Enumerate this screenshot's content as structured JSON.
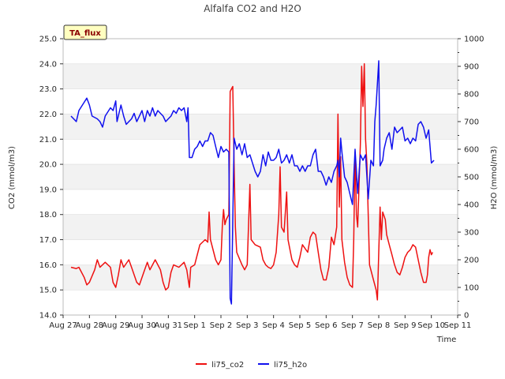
{
  "chart_data": {
    "type": "line",
    "title": "Alfalfa CO2 and H2O",
    "badge": "TA_flux",
    "xlabel": "Time",
    "ylabel_left": "CO2 (mmol/m3)",
    "ylabel_right": "H2O (mmol/m3)",
    "ylim_left": [
      14.0,
      25.0
    ],
    "ylim_right": [
      0,
      1000
    ],
    "xlim": [
      0,
      15
    ],
    "grid": "horizontal bands",
    "legend_position": "bottom-center",
    "x_ticks": [
      "Aug 27",
      "Aug 28",
      "Aug 29",
      "Aug 30",
      "Aug 31",
      "Sep 1",
      "Sep 2",
      "Sep 3",
      "Sep 4",
      "Sep 5",
      "Sep 6",
      "Sep 7",
      "Sep 8",
      "Sep 9",
      "Sep 10",
      "Sep 11"
    ],
    "y_ticks_left": [
      "14.0",
      "15.0",
      "16.0",
      "17.0",
      "18.0",
      "19.0",
      "20.0",
      "21.0",
      "22.0",
      "23.0",
      "24.0",
      "25.0"
    ],
    "y_ticks_right": [
      "0",
      "100",
      "200",
      "300",
      "400",
      "500",
      "600",
      "700",
      "800",
      "900",
      "1000"
    ],
    "series": [
      {
        "name": "li75_co2",
        "axis": "left",
        "color": "#ee1111",
        "points": [
          [
            0.3,
            15.9
          ],
          [
            0.5,
            15.85
          ],
          [
            0.6,
            15.9
          ],
          [
            0.8,
            15.5
          ],
          [
            0.9,
            15.2
          ],
          [
            1.0,
            15.3
          ],
          [
            1.2,
            15.8
          ],
          [
            1.3,
            16.2
          ],
          [
            1.4,
            15.9
          ],
          [
            1.6,
            16.1
          ],
          [
            1.8,
            15.9
          ],
          [
            1.9,
            15.3
          ],
          [
            2.0,
            15.1
          ],
          [
            2.1,
            15.6
          ],
          [
            2.2,
            16.2
          ],
          [
            2.3,
            15.9
          ],
          [
            2.5,
            16.2
          ],
          [
            2.6,
            15.9
          ],
          [
            2.8,
            15.3
          ],
          [
            2.9,
            15.2
          ],
          [
            3.1,
            15.8
          ],
          [
            3.2,
            16.1
          ],
          [
            3.3,
            15.8
          ],
          [
            3.5,
            16.2
          ],
          [
            3.7,
            15.8
          ],
          [
            3.8,
            15.3
          ],
          [
            3.9,
            15.0
          ],
          [
            4.0,
            15.1
          ],
          [
            4.1,
            15.7
          ],
          [
            4.2,
            16.0
          ],
          [
            4.4,
            15.9
          ],
          [
            4.6,
            16.1
          ],
          [
            4.7,
            15.8
          ],
          [
            4.8,
            15.1
          ],
          [
            4.85,
            15.9
          ],
          [
            5.0,
            16.0
          ],
          [
            5.2,
            16.8
          ],
          [
            5.4,
            17.0
          ],
          [
            5.5,
            16.9
          ],
          [
            5.55,
            18.1
          ],
          [
            5.6,
            17.0
          ],
          [
            5.8,
            16.2
          ],
          [
            5.9,
            16.0
          ],
          [
            6.0,
            16.2
          ],
          [
            6.05,
            17.5
          ],
          [
            6.1,
            18.2
          ],
          [
            6.15,
            17.6
          ],
          [
            6.2,
            17.8
          ],
          [
            6.3,
            18.0
          ],
          [
            6.35,
            22.9
          ],
          [
            6.45,
            23.1
          ],
          [
            6.5,
            20.0
          ],
          [
            6.55,
            17.5
          ],
          [
            6.6,
            16.5
          ],
          [
            6.8,
            16.0
          ],
          [
            6.9,
            15.8
          ],
          [
            7.0,
            16.0
          ],
          [
            7.1,
            19.2
          ],
          [
            7.15,
            17.0
          ],
          [
            7.3,
            16.8
          ],
          [
            7.5,
            16.7
          ],
          [
            7.6,
            16.2
          ],
          [
            7.7,
            16.0
          ],
          [
            7.8,
            15.9
          ],
          [
            7.9,
            15.85
          ],
          [
            8.0,
            16.0
          ],
          [
            8.1,
            16.5
          ],
          [
            8.2,
            18.0
          ],
          [
            8.25,
            19.9
          ],
          [
            8.3,
            17.5
          ],
          [
            8.4,
            17.3
          ],
          [
            8.5,
            18.9
          ],
          [
            8.55,
            17.0
          ],
          [
            8.7,
            16.2
          ],
          [
            8.8,
            16.0
          ],
          [
            8.9,
            15.9
          ],
          [
            9.0,
            16.3
          ],
          [
            9.1,
            16.8
          ],
          [
            9.3,
            16.5
          ],
          [
            9.4,
            17.1
          ],
          [
            9.5,
            17.3
          ],
          [
            9.6,
            17.2
          ],
          [
            9.7,
            16.5
          ],
          [
            9.8,
            15.8
          ],
          [
            9.9,
            15.4
          ],
          [
            10.0,
            15.4
          ],
          [
            10.1,
            15.9
          ],
          [
            10.2,
            17.1
          ],
          [
            10.3,
            16.8
          ],
          [
            10.4,
            17.5
          ],
          [
            10.45,
            22.0
          ],
          [
            10.5,
            18.3
          ],
          [
            10.55,
            20.3
          ],
          [
            10.6,
            17.0
          ],
          [
            10.7,
            16.1
          ],
          [
            10.8,
            15.5
          ],
          [
            10.9,
            15.2
          ],
          [
            11.0,
            15.1
          ],
          [
            11.05,
            17.0
          ],
          [
            11.1,
            20.5
          ],
          [
            11.15,
            18.0
          ],
          [
            11.2,
            17.5
          ],
          [
            11.3,
            20.8
          ],
          [
            11.35,
            23.9
          ],
          [
            11.4,
            22.3
          ],
          [
            11.45,
            24.0
          ],
          [
            11.5,
            21.0
          ],
          [
            11.55,
            20.0
          ],
          [
            11.65,
            16.0
          ],
          [
            11.8,
            15.4
          ],
          [
            11.9,
            15.0
          ],
          [
            11.95,
            14.6
          ],
          [
            12.0,
            16.5
          ],
          [
            12.05,
            18.3
          ],
          [
            12.1,
            17.0
          ],
          [
            12.15,
            18.1
          ],
          [
            12.25,
            17.8
          ],
          [
            12.3,
            17.2
          ],
          [
            12.4,
            16.8
          ],
          [
            12.5,
            16.4
          ],
          [
            12.6,
            16.0
          ],
          [
            12.7,
            15.7
          ],
          [
            12.8,
            15.6
          ],
          [
            12.9,
            15.9
          ],
          [
            13.0,
            16.3
          ],
          [
            13.1,
            16.5
          ],
          [
            13.2,
            16.6
          ],
          [
            13.3,
            16.8
          ],
          [
            13.4,
            16.7
          ],
          [
            13.5,
            16.2
          ],
          [
            13.6,
            15.7
          ],
          [
            13.7,
            15.3
          ],
          [
            13.8,
            15.3
          ],
          [
            13.85,
            15.6
          ],
          [
            13.9,
            16.3
          ],
          [
            13.95,
            16.6
          ],
          [
            14.0,
            16.4
          ],
          [
            14.05,
            16.5
          ]
        ]
      },
      {
        "name": "li75_h2o",
        "axis": "right",
        "color": "#1111ee",
        "points": [
          [
            0.3,
            720
          ],
          [
            0.5,
            700
          ],
          [
            0.6,
            740
          ],
          [
            0.8,
            770
          ],
          [
            0.9,
            785
          ],
          [
            1.0,
            760
          ],
          [
            1.1,
            720
          ],
          [
            1.3,
            710
          ],
          [
            1.4,
            700
          ],
          [
            1.5,
            680
          ],
          [
            1.6,
            720
          ],
          [
            1.8,
            750
          ],
          [
            1.9,
            740
          ],
          [
            2.0,
            775
          ],
          [
            2.05,
            700
          ],
          [
            2.2,
            760
          ],
          [
            2.3,
            720
          ],
          [
            2.4,
            690
          ],
          [
            2.5,
            700
          ],
          [
            2.6,
            710
          ],
          [
            2.7,
            730
          ],
          [
            2.8,
            700
          ],
          [
            2.9,
            720
          ],
          [
            3.0,
            740
          ],
          [
            3.1,
            700
          ],
          [
            3.2,
            740
          ],
          [
            3.3,
            720
          ],
          [
            3.4,
            750
          ],
          [
            3.5,
            720
          ],
          [
            3.6,
            740
          ],
          [
            3.7,
            730
          ],
          [
            3.8,
            720
          ],
          [
            3.9,
            700
          ],
          [
            4.0,
            710
          ],
          [
            4.1,
            720
          ],
          [
            4.2,
            740
          ],
          [
            4.3,
            730
          ],
          [
            4.4,
            750
          ],
          [
            4.5,
            740
          ],
          [
            4.6,
            750
          ],
          [
            4.7,
            700
          ],
          [
            4.75,
            750
          ],
          [
            4.8,
            570
          ],
          [
            4.9,
            570
          ],
          [
            5.0,
            600
          ],
          [
            5.1,
            610
          ],
          [
            5.2,
            630
          ],
          [
            5.3,
            610
          ],
          [
            5.4,
            630
          ],
          [
            5.5,
            630
          ],
          [
            5.6,
            660
          ],
          [
            5.7,
            650
          ],
          [
            5.8,
            610
          ],
          [
            5.9,
            570
          ],
          [
            6.0,
            610
          ],
          [
            6.1,
            590
          ],
          [
            6.2,
            600
          ],
          [
            6.3,
            590
          ],
          [
            6.35,
            60
          ],
          [
            6.4,
            40
          ],
          [
            6.5,
            640
          ],
          [
            6.6,
            600
          ],
          [
            6.7,
            620
          ],
          [
            6.8,
            580
          ],
          [
            6.9,
            620
          ],
          [
            7.0,
            570
          ],
          [
            7.1,
            580
          ],
          [
            7.2,
            550
          ],
          [
            7.3,
            520
          ],
          [
            7.4,
            500
          ],
          [
            7.5,
            520
          ],
          [
            7.6,
            580
          ],
          [
            7.7,
            540
          ],
          [
            7.8,
            590
          ],
          [
            7.9,
            560
          ],
          [
            8.0,
            560
          ],
          [
            8.1,
            570
          ],
          [
            8.2,
            600
          ],
          [
            8.3,
            550
          ],
          [
            8.4,
            560
          ],
          [
            8.5,
            580
          ],
          [
            8.6,
            550
          ],
          [
            8.7,
            580
          ],
          [
            8.8,
            540
          ],
          [
            8.9,
            540
          ],
          [
            9.0,
            520
          ],
          [
            9.1,
            540
          ],
          [
            9.2,
            520
          ],
          [
            9.3,
            540
          ],
          [
            9.4,
            540
          ],
          [
            9.5,
            580
          ],
          [
            9.6,
            600
          ],
          [
            9.7,
            520
          ],
          [
            9.8,
            520
          ],
          [
            9.9,
            500
          ],
          [
            10.0,
            470
          ],
          [
            10.1,
            500
          ],
          [
            10.2,
            480
          ],
          [
            10.3,
            520
          ],
          [
            10.4,
            540
          ],
          [
            10.45,
            560
          ],
          [
            10.5,
            500
          ],
          [
            10.55,
            640
          ],
          [
            10.6,
            590
          ],
          [
            10.7,
            500
          ],
          [
            10.8,
            480
          ],
          [
            10.9,
            440
          ],
          [
            11.0,
            400
          ],
          [
            11.05,
            500
          ],
          [
            11.1,
            600
          ],
          [
            11.2,
            440
          ],
          [
            11.3,
            580
          ],
          [
            11.4,
            560
          ],
          [
            11.5,
            580
          ],
          [
            11.6,
            420
          ],
          [
            11.7,
            560
          ],
          [
            11.8,
            540
          ],
          [
            11.85,
            700
          ],
          [
            11.9,
            760
          ],
          [
            12.0,
            920
          ],
          [
            12.05,
            540
          ],
          [
            12.15,
            560
          ],
          [
            12.2,
            600
          ],
          [
            12.3,
            640
          ],
          [
            12.4,
            660
          ],
          [
            12.5,
            600
          ],
          [
            12.6,
            680
          ],
          [
            12.7,
            660
          ],
          [
            12.8,
            670
          ],
          [
            12.9,
            680
          ],
          [
            13.0,
            630
          ],
          [
            13.1,
            640
          ],
          [
            13.2,
            620
          ],
          [
            13.3,
            640
          ],
          [
            13.4,
            630
          ],
          [
            13.5,
            690
          ],
          [
            13.6,
            700
          ],
          [
            13.7,
            680
          ],
          [
            13.8,
            640
          ],
          [
            13.9,
            670
          ],
          [
            14.0,
            550
          ],
          [
            14.1,
            560
          ]
        ]
      }
    ]
  }
}
